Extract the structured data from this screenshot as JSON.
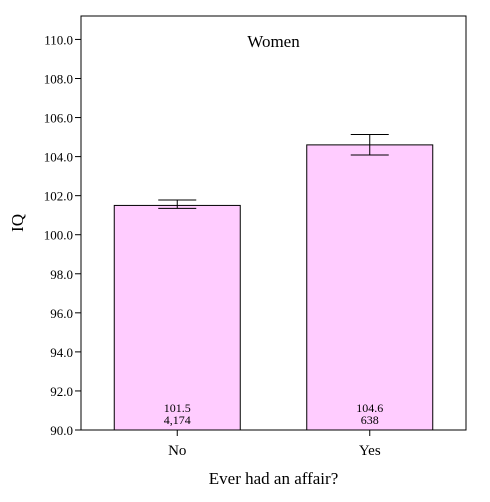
{
  "chart_data": {
    "type": "bar",
    "title": "Women",
    "xlabel": "Ever had an affair?",
    "ylabel": "IQ",
    "categories": [
      "No",
      "Yes"
    ],
    "values": [
      101.5,
      104.6
    ],
    "counts": [
      "4,174",
      "638"
    ],
    "value_labels": [
      "101.5",
      "104.6"
    ],
    "error_bars": [
      {
        "low": 101.35,
        "high": 101.78
      },
      {
        "low": 104.08,
        "high": 105.13
      }
    ],
    "ylim": [
      90.0,
      111.2
    ],
    "yticks": [
      "90.0",
      "92.0",
      "94.0",
      "96.0",
      "98.0",
      "100.0",
      "102.0",
      "104.0",
      "106.0",
      "108.0",
      "110.0"
    ],
    "grid": false,
    "bar_color": "#ffccff",
    "bar_stroke": "#000000"
  }
}
